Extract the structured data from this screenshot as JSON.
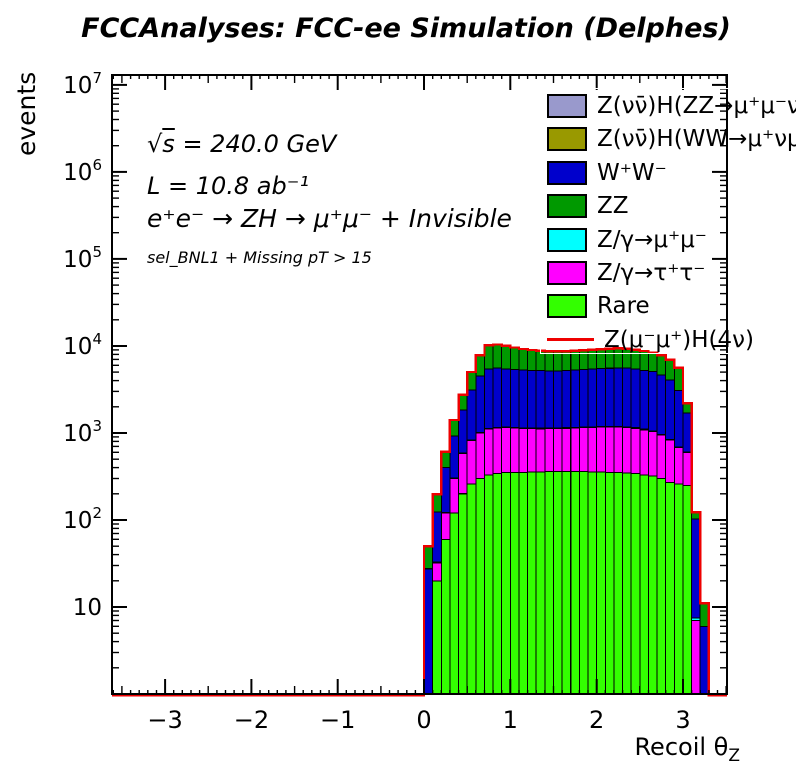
{
  "chart_data": {
    "type": "stacked_step_histogram",
    "title": "FCCAnalyses: FCC-ee Simulation (Delphes)",
    "ylabel": "events",
    "xlabel": {
      "main": "Recoil θ",
      "sub": "Z"
    },
    "y_scale": "log",
    "x_range": [
      -3.615,
      3.51
    ],
    "y_range": [
      1,
      13000000
    ],
    "x_major_ticks": [
      -3,
      -2,
      -1,
      0,
      1,
      2,
      3
    ],
    "x_minor_step": 0.1,
    "y_major_exponents": [
      1,
      2,
      3,
      4,
      5,
      6,
      7
    ],
    "bin_start": 0.0,
    "bin_width": 0.1,
    "n_bins": 33,
    "series_order": "bottom_to_top",
    "series": [
      {
        "name": "Rare",
        "color": "#33ff00",
        "values": [
          0,
          20,
          60,
          120,
          200,
          260,
          300,
          330,
          340,
          350,
          350,
          350,
          355,
          355,
          360,
          360,
          360,
          360,
          360,
          355,
          355,
          350,
          350,
          345,
          340,
          330,
          320,
          300,
          270,
          260,
          250,
          0,
          0
        ]
      },
      {
        "name": "Z/γ→τ⁺τ⁻",
        "color": "#ff00ff",
        "values": [
          0,
          12,
          60,
          180,
          380,
          560,
          700,
          780,
          800,
          800,
          790,
          780,
          770,
          760,
          760,
          760,
          770,
          780,
          790,
          800,
          810,
          820,
          820,
          810,
          790,
          760,
          720,
          650,
          560,
          420,
          350,
          7,
          0
        ]
      },
      {
        "name": "Z/γ→μ⁺μ⁻",
        "color": "#00ffff",
        "values": [
          0.5,
          1,
          2,
          4,
          8,
          12,
          15,
          18,
          18,
          18,
          18,
          18,
          18,
          18,
          18,
          18,
          18,
          18,
          18,
          18,
          18,
          18,
          18,
          18,
          18,
          16,
          15,
          14,
          12,
          9,
          4,
          0.5,
          0
        ]
      },
      {
        "name": "W⁺W⁻",
        "color": "#0000cc",
        "values": [
          27,
          90,
          280,
          620,
          1250,
          2300,
          3500,
          4300,
          4400,
          4300,
          4200,
          4150,
          4100,
          4100,
          4050,
          4050,
          4100,
          4150,
          4200,
          4250,
          4300,
          4350,
          4400,
          4400,
          4300,
          4150,
          4000,
          3700,
          3200,
          2400,
          1100,
          95,
          6
        ]
      },
      {
        "name": "ZZ",
        "color": "#009900",
        "values": [
          22,
          73,
          200,
          480,
          900,
          1870,
          3300,
          4700,
          4800,
          4500,
          4200,
          3900,
          3700,
          3550,
          3500,
          3450,
          3450,
          3500,
          3550,
          3600,
          3650,
          3700,
          3750,
          3700,
          3600,
          3450,
          3300,
          3100,
          2850,
          2500,
          480,
          20,
          5
        ]
      },
      {
        "name": "Z(νν̄)H(WW→μ⁺νμν̄)",
        "color": "#999900",
        "values": [
          0.3,
          1,
          3,
          6,
          12,
          20,
          28,
          33,
          34,
          34,
          34,
          33,
          33,
          33,
          33,
          33,
          33,
          33,
          33,
          33,
          33,
          33,
          33,
          33,
          32,
          31,
          30,
          28,
          24,
          18,
          8,
          0.5,
          0
        ]
      },
      {
        "name": "Z(νν̄)H(ZZ→μ⁺μ⁻νν̄)",
        "color": "#9999cc",
        "values": [
          0,
          0.2,
          0.5,
          1,
          2,
          3,
          4,
          5,
          5,
          5,
          5,
          5,
          5,
          5,
          5,
          5,
          5,
          5,
          5,
          5,
          5,
          5,
          5,
          5,
          5,
          5,
          4,
          4,
          3,
          2,
          1,
          0,
          0
        ]
      }
    ],
    "signal_line": {
      "name": "Z(μ⁻μ⁺)H(4ν)",
      "color": "#ee0000",
      "values_equal_stack_total": true
    }
  },
  "annotations": {
    "sqrt_s": {
      "radical": "√",
      "variable": "s",
      "rest": " = 240.0 GeV"
    },
    "luminosity": "L = 10.8 ab⁻¹",
    "process": "e⁺e⁻ → ZH → μ⁺μ⁻ + Invisible",
    "selection": "sel_BNL1 + Missing pT > 15"
  },
  "legend": {
    "entries": [
      {
        "label": "Z(νν̄)H(ZZ→μ⁺μ⁻νν̄",
        "color": "#9999cc",
        "type": "box"
      },
      {
        "label": "Z(νν̄)H(WW→μ⁺νμν̄",
        "color": "#999900",
        "type": "box"
      },
      {
        "label": "W⁺W⁻",
        "color": "#0000cc",
        "type": "box"
      },
      {
        "label": "ZZ",
        "color": "#009900",
        "type": "box"
      },
      {
        "label": "Z/γ→μ⁺μ⁻",
        "color": "#00ffff",
        "type": "box"
      },
      {
        "label": "Z/γ→τ⁺τ⁻",
        "color": "#ff00ff",
        "type": "box"
      },
      {
        "label": "Rare",
        "color": "#33ff00",
        "type": "box"
      },
      {
        "label": "Z(μ⁻μ⁺)H(4ν)",
        "color": "#ee0000",
        "type": "line"
      }
    ]
  }
}
